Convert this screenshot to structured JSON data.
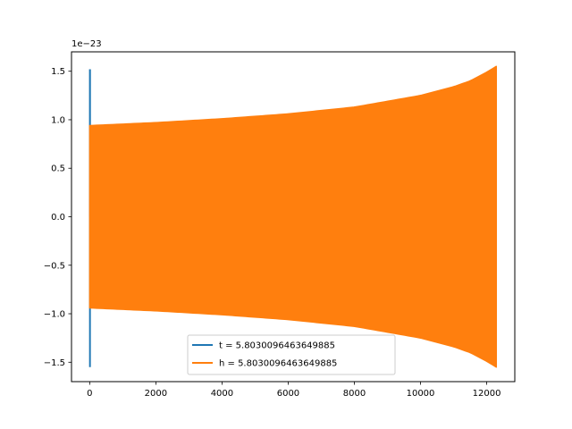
{
  "chart_data": {
    "type": "line",
    "title": "",
    "xlabel": "",
    "ylabel": "",
    "y_offset_text": "1e−23",
    "xlim": [
      -550,
      12850
    ],
    "ylim": [
      -1.7,
      1.7
    ],
    "xticks": [
      0,
      2000,
      4000,
      6000,
      8000,
      10000,
      12000
    ],
    "xtick_labels": [
      "0",
      "2000",
      "4000",
      "6000",
      "8000",
      "10000",
      "12000"
    ],
    "yticks": [
      -1.5,
      -1.0,
      -0.5,
      0.0,
      0.5,
      1.0,
      1.5
    ],
    "ytick_labels": [
      "−1.5",
      "−1.0",
      "−0.5",
      "0.0",
      "0.5",
      "1.0",
      "1.5"
    ],
    "grid": false,
    "legend_position": "lower center",
    "series": [
      {
        "name": "t = 5.8030096463649885",
        "color": "#1f77b4",
        "style": "oscillation",
        "x_range": [
          0,
          16
        ],
        "envelope": {
          "x": [
            0,
            16
          ],
          "upper": [
            1.52,
            1.52
          ],
          "lower": [
            -1.55,
            -1.55
          ]
        }
      },
      {
        "name": "h = 5.8030096463649885",
        "color": "#ff7f0e",
        "style": "filled-oscillation",
        "x_range": [
          0,
          12290
        ],
        "envelope": {
          "x": [
            0,
            2000,
            4000,
            6000,
            8000,
            10000,
            11000,
            11500,
            12000,
            12290
          ],
          "upper": [
            0.94,
            0.97,
            1.01,
            1.06,
            1.13,
            1.25,
            1.34,
            1.4,
            1.49,
            1.55
          ],
          "lower": [
            -0.94,
            -0.97,
            -1.01,
            -1.06,
            -1.13,
            -1.25,
            -1.34,
            -1.4,
            -1.49,
            -1.55
          ]
        }
      }
    ]
  }
}
